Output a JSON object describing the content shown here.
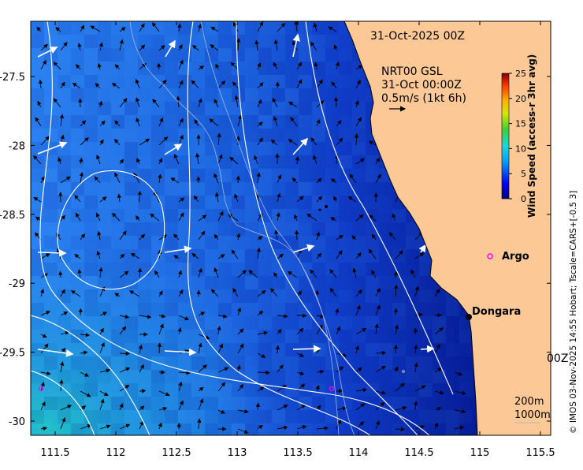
{
  "header": {
    "date_title": "31-Oct-2025 00Z",
    "product": "NRT00 GSL",
    "time": "31-Oct 00:00Z",
    "scale_note": "0.5m/s (1kt 6h)"
  },
  "colorbar": {
    "title": "Wind Speed (access-r 3hr avg)",
    "min": 0,
    "max": 25,
    "ticks": [
      "25",
      "20",
      "15",
      "10",
      "5",
      "0"
    ]
  },
  "places": {
    "argo_label": "Argo",
    "town_label": "Dongara",
    "overlap_text": "00Z"
  },
  "depth_legend": {
    "shallow": "200m",
    "deep": "1000m"
  },
  "credit": "© IMOS 03-Nov-2025 14:55 Hobart; Tscale=CARS+[-0.5 3]",
  "axes": {
    "x_ticks": [
      "111.5",
      "112",
      "112.5",
      "113",
      "113.5",
      "114",
      "114.5",
      "115",
      "115.5"
    ],
    "y_ticks": [
      "-27.5",
      "-28",
      "-28.5",
      "-29",
      "-29.5",
      "-30"
    ]
  },
  "colors": {
    "land": "#fcc896",
    "ocean": "#1e6ee8",
    "deep_ocean": "#04127e",
    "argo_marker": "#ff00ff",
    "contour": "#ffffff"
  }
}
